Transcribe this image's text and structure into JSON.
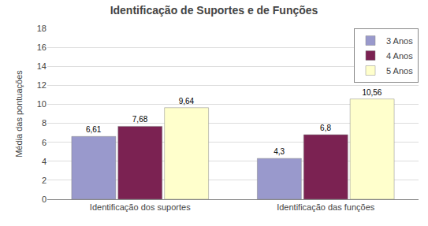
{
  "chart_data": {
    "type": "bar",
    "title": "Identificação de Suportes e de Funções",
    "ylabel": "Média das pontuações",
    "categories": [
      "Identificação dos suportes",
      "Identificação das funções"
    ],
    "series": [
      {
        "name": "3 Anos",
        "color": "#9999cc",
        "values": [
          6.61,
          4.3
        ],
        "value_labels": [
          "6,61",
          "4,3"
        ]
      },
      {
        "name": "4 Anos",
        "color": "#7b2252",
        "values": [
          7.68,
          6.8
        ],
        "value_labels": [
          "7,68",
          "6,8"
        ]
      },
      {
        "name": "5 Anos",
        "color": "#ffffcc",
        "values": [
          9.64,
          10.56
        ],
        "value_labels": [
          "9,64",
          "10,56"
        ]
      }
    ],
    "ylim": [
      0,
      18
    ],
    "yticks": [
      0,
      2,
      4,
      6,
      8,
      10,
      12,
      14,
      16,
      18
    ],
    "grid": true,
    "legend": "upper right",
    "data_labels": true
  }
}
